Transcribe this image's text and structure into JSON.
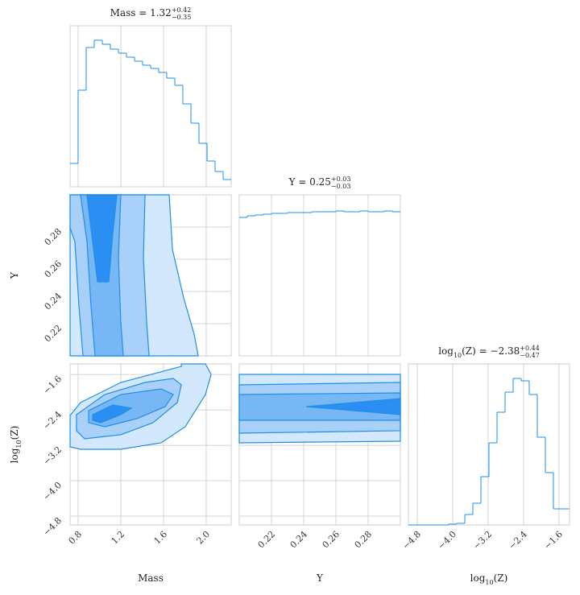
{
  "chart_data": {
    "type": "corner",
    "color": "#1f8fe6",
    "grid": true,
    "params": [
      {
        "label": [
          {
            "text": "Mass"
          }
        ],
        "lim": [
          0.725,
          2.234
        ],
        "ticks": [
          0.8,
          1.2,
          1.6,
          {
            "value": 2,
            "label": "2.0"
          }
        ]
      },
      {
        "label": [
          {
            "text": "Y"
          }
        ],
        "lim": [
          0.2,
          0.3
        ],
        "ticks": [
          0.22,
          0.24,
          0.26,
          0.28
        ]
      },
      {
        "label": [
          {
            "text": "log"
          },
          {
            "text": "10",
            "pos": "sub"
          },
          {
            "text": "(Z)"
          }
        ],
        "lim": [
          -5.0,
          -1.36
        ],
        "ticks": [
          {
            "value": -4.8,
            "label": "−4.8"
          },
          {
            "value": -4.0,
            "label": "−4.0"
          },
          {
            "value": -3.2,
            "label": "−3.2"
          },
          {
            "value": -2.4,
            "label": "−2.4"
          },
          {
            "value": -1.6,
            "label": "−1.6"
          }
        ]
      }
    ],
    "diagonal": [
      {
        "title": [
          {
            "text": "Mass = 1.32"
          },
          {
            "text": "+0.42",
            "pos": "sup"
          },
          {
            "text": "−0.35",
            "pos": "sub"
          }
        ],
        "ylim": [
          0,
          200
        ],
        "bins": [
          0.725,
          0.8,
          0.876,
          0.951,
          1.027,
          1.102,
          1.178,
          1.253,
          1.329,
          1.404,
          1.48,
          1.555,
          1.63,
          1.706,
          1.781,
          1.857,
          1.932,
          2.008,
          2.083,
          2.159,
          2.234
        ],
        "counts": [
          29,
          120,
          173,
          182,
          177,
          171,
          166,
          161,
          156,
          151,
          147,
          142,
          135,
          126,
          103,
          79,
          54,
          32,
          19,
          9
        ]
      },
      {
        "title": [
          {
            "text": "Y = 0.25"
          },
          {
            "text": "+0.03",
            "pos": "sup"
          },
          {
            "text": "−0.03",
            "pos": "sub"
          }
        ],
        "ylim": [
          0,
          200
        ],
        "bins": [
          0.2,
          0.205,
          0.21,
          0.215,
          0.22,
          0.225,
          0.23,
          0.235,
          0.24,
          0.245,
          0.25,
          0.255,
          0.26,
          0.265,
          0.27,
          0.275,
          0.28,
          0.285,
          0.29,
          0.295,
          0.3
        ],
        "counts": [
          172,
          174,
          175,
          176,
          177,
          177,
          178,
          178,
          178,
          179,
          179,
          179,
          180,
          179,
          179,
          180,
          179,
          179,
          180,
          179
        ]
      },
      {
        "title": [
          {
            "text": "log"
          },
          {
            "text": "10",
            "pos": "sub"
          },
          {
            "text": "(Z) = −2.38"
          },
          {
            "text": "+0.44",
            "pos": "sup"
          },
          {
            "text": "−0.47",
            "pos": "sub"
          }
        ],
        "ylim": [
          0,
          200
        ],
        "bins": [
          -5.0,
          -4.818,
          -4.636,
          -4.454,
          -4.272,
          -4.09,
          -3.908,
          -3.726,
          -3.544,
          -3.362,
          -3.18,
          -2.998,
          -2.816,
          -2.634,
          -2.452,
          -2.27,
          -2.088,
          -1.906,
          -1.724,
          -1.542,
          -1.36
        ],
        "counts": [
          0,
          0,
          0,
          0,
          0,
          1,
          2,
          13,
          27,
          60,
          102,
          140,
          165,
          182,
          179,
          162,
          109,
          65,
          20,
          20
        ]
      }
    ],
    "pairs": [
      {
        "contours": [
          {
            "fill": "#d3e8fc",
            "x": [
              0.725,
              1.653,
              1.684,
              1.789,
              1.887,
              1.925,
              0.725
            ],
            "y": [
              0.3,
              0.3,
              0.266,
              0.236,
              0.2135,
              0.2,
              0.2
            ]
          },
          {
            "fill": "#a8d0f8",
            "x": [
              0.725,
              1.427,
              1.412,
              1.442,
              1.465,
              0.846,
              0.808,
              0.77,
              0.725
            ],
            "y": [
              0.3,
              0.3,
              0.261,
              0.221,
              0.2,
              0.2,
              0.231,
              0.271,
              0.2795
            ]
          },
          {
            "fill": "#78b7f5",
            "x": [
              0.823,
              1.2,
              1.178,
              1.2,
              1.223,
              0.959,
              0.921,
              0.883
            ],
            "y": [
              0.3,
              0.3,
              0.261,
              0.221,
              0.2,
              0.2,
              0.231,
              0.271
            ]
          },
          {
            "fill": "#2a8ef2",
            "x": [
              0.883,
              1.163,
              1.125,
              1.087,
              0.982,
              0.936,
              0.899
            ],
            "y": [
              0.3,
              0.3,
              0.276,
              0.246,
              0.246,
              0.271,
              0.291
            ]
          }
        ]
      },
      {
        "contours": [
          {
            "fill": "#d3e8fc",
            "x": [
              0.725,
              0.823,
              1.2,
              1.767,
              1.767,
              1.993,
              2.046,
              1.993,
              1.804,
              1.578,
              1.2,
              0.823,
              0.725
            ],
            "y": [
              -2.525,
              -2.234,
              -1.779,
              -1.415,
              -1.36,
              -1.36,
              -1.597,
              -2.052,
              -2.779,
              -3.143,
              -3.289,
              -3.289,
              -3.234
            ]
          },
          {
            "fill": "#a8d0f8",
            "x": [
              0.785,
              1.05,
              1.427,
              1.691,
              1.767,
              1.729,
              1.502,
              1.2,
              0.861,
              0.785
            ],
            "y": [
              -2.507,
              -2.052,
              -1.779,
              -1.688,
              -1.833,
              -2.234,
              -2.688,
              -2.961,
              -3.052,
              -2.87
            ]
          },
          {
            "fill": "#78b7f5",
            "x": [
              0.899,
              1.2,
              1.578,
              1.691,
              1.616,
              1.351,
              1.05,
              0.899
            ],
            "y": [
              -2.416,
              -2.052,
              -1.924,
              -2.052,
              -2.325,
              -2.597,
              -2.779,
              -2.688
            ]
          },
          {
            "fill": "#2a8ef2",
            "x": [
              0.936,
              1.125,
              1.299,
              1.2,
              1.012,
              0.936
            ],
            "y": [
              -2.507,
              -2.288,
              -2.361,
              -2.507,
              -2.688,
              -2.634
            ]
          }
        ]
      },
      {
        "contours": [
          {
            "fill": "#d3e8fc",
            "x": [
              0.2,
              0.3,
              0.3,
              0.2
            ],
            "y": [
              -1.597,
              -1.597,
              -3.107,
              -3.143
            ]
          },
          {
            "fill": "#a8d0f8",
            "x": [
              0.2,
              0.3,
              0.3,
              0.2
            ],
            "y": [
              -1.833,
              -1.779,
              -2.87,
              -2.925
            ]
          },
          {
            "fill": "#78b7f5",
            "x": [
              0.2,
              0.3,
              0.3,
              0.2
            ],
            "y": [
              -2.052,
              -2.015,
              -2.634,
              -2.634
            ]
          },
          {
            "fill": "#2a8ef2",
            "x": [
              0.2415,
              0.3,
              0.3
            ],
            "y": [
              -2.325,
              -2.143,
              -2.507
            ]
          }
        ]
      }
    ]
  }
}
